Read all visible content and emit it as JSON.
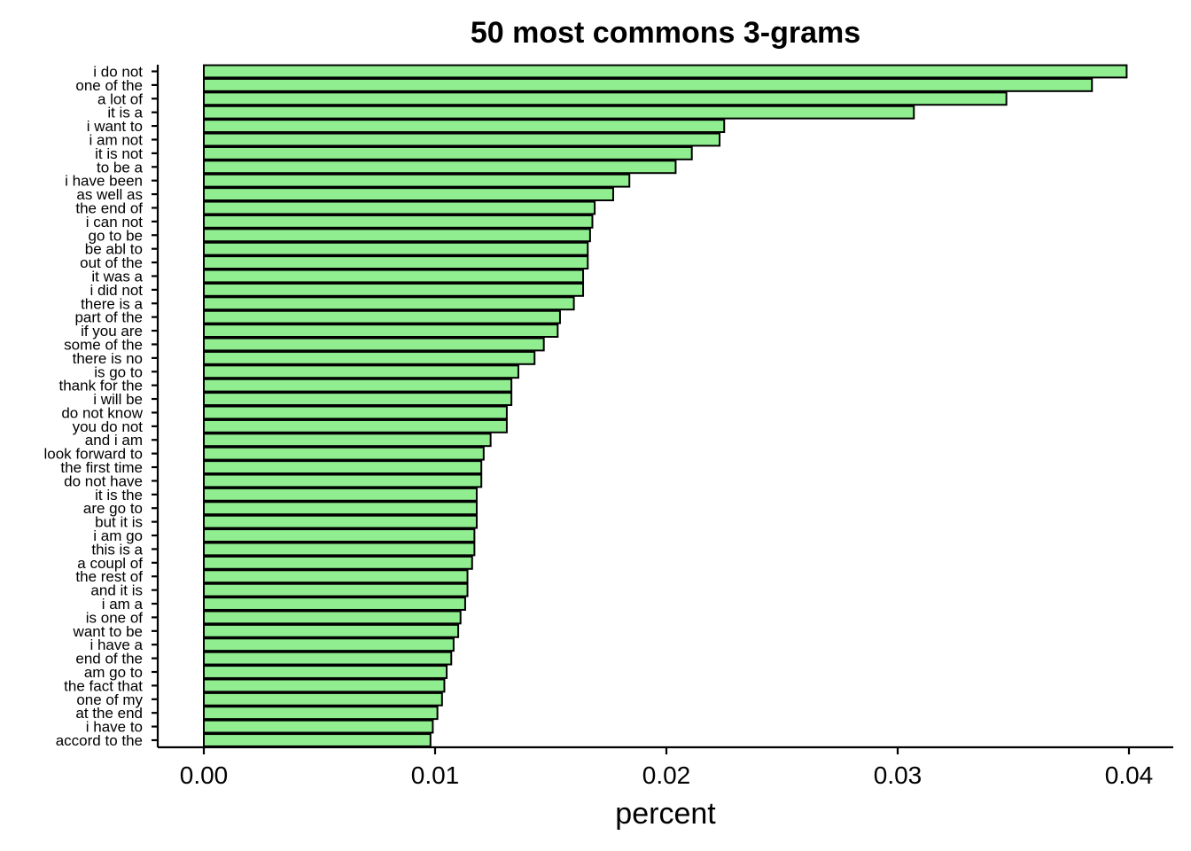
{
  "chart_data": {
    "type": "bar",
    "orientation": "horizontal",
    "title": "50 most commons 3-grams",
    "xlabel": "percent",
    "ylabel": "",
    "xlim": [
      -0.002,
      0.0418
    ],
    "xticks": [
      0.0,
      0.01,
      0.02,
      0.03,
      0.04
    ],
    "xtick_labels": [
      "0.00",
      "0.01",
      "0.02",
      "0.03",
      "0.04"
    ],
    "grid": false,
    "bar_color": "#90ee90",
    "categories": [
      "i do not",
      "one of the",
      "a lot of",
      "it is a",
      "i want to",
      "i am not",
      "it is not",
      "to be a",
      "i have been",
      "as well as",
      "the end of",
      "i can not",
      "go to be",
      "be abl to",
      "out of the",
      "it was a",
      "i did not",
      "there is a",
      "part of the",
      "if you are",
      "some of the",
      "there is no",
      "is go to",
      "thank for the",
      "i will be",
      "do not know",
      "you do not",
      "and i am",
      "look forward to",
      "the first time",
      "do not have",
      "it is the",
      "are go to",
      "but it is",
      "i am go",
      "this is a",
      "a coupl of",
      "the rest of",
      "and it is",
      "i am a",
      "is one of",
      "want to be",
      "i have a",
      "end of the",
      "am go to",
      "the fact that",
      "one of my",
      "at the end",
      "i have to",
      "accord to the"
    ],
    "values": [
      0.0399,
      0.0384,
      0.0347,
      0.0307,
      0.0225,
      0.0223,
      0.0211,
      0.0204,
      0.0184,
      0.0177,
      0.0169,
      0.0168,
      0.0167,
      0.0166,
      0.0166,
      0.0164,
      0.0164,
      0.016,
      0.0154,
      0.0153,
      0.0147,
      0.0143,
      0.0136,
      0.0133,
      0.0133,
      0.0131,
      0.0131,
      0.0124,
      0.0121,
      0.012,
      0.012,
      0.0118,
      0.0118,
      0.0118,
      0.0117,
      0.0117,
      0.0116,
      0.0114,
      0.0114,
      0.0113,
      0.0111,
      0.011,
      0.0108,
      0.0107,
      0.0105,
      0.0104,
      0.0103,
      0.0101,
      0.0099,
      0.0098
    ]
  }
}
